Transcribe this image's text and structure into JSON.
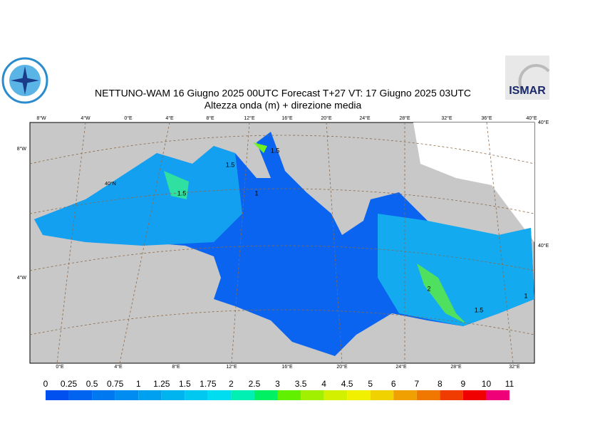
{
  "header": {
    "title": "NETTUNO-WAM  16   Giugno  2025 00UTC Forecast T+27 VT: 17   Giugno  2025 03UTC",
    "subtitle": "Altezza onda (m) + direzione media",
    "logo_text": "ISMAR"
  },
  "map": {
    "top_labels": [
      "8°W",
      "4°W",
      "0°E",
      "4°E",
      "8°E",
      "12°E",
      "16°E",
      "20°E",
      "24°E",
      "28°E",
      "32°E",
      "36°E",
      "40°E"
    ],
    "left_labels": [
      "8°W",
      "4°W"
    ],
    "lat_label": "40°N",
    "right_labels": [
      "40°E",
      "40°E"
    ],
    "bottom_labels": [
      "0°E",
      "4°E",
      "8°E",
      "12°E",
      "16°E",
      "20°E",
      "24°E",
      "28°E",
      "32°E"
    ],
    "contour_labels": [
      "1.5",
      "1.5",
      "1",
      "1.5",
      "2",
      "1.5",
      "1"
    ]
  },
  "colorbar": {
    "levels": [
      0,
      0.25,
      0.5,
      0.75,
      1,
      1.25,
      1.5,
      1.75,
      2,
      2.5,
      3,
      3.5,
      4,
      4.5,
      5,
      6,
      7,
      8,
      9,
      10,
      11
    ],
    "colors": [
      "#0050f0",
      "#0064f0",
      "#0078f0",
      "#008cf0",
      "#00a0f0",
      "#00b4f0",
      "#00c8f0",
      "#00dcf0",
      "#00f0b4",
      "#00f064",
      "#60f000",
      "#a0f000",
      "#d2f000",
      "#f0f000",
      "#f0d200",
      "#f0a000",
      "#f07800",
      "#f03c00",
      "#f00000",
      "#f00078",
      "#f000c8"
    ]
  }
}
